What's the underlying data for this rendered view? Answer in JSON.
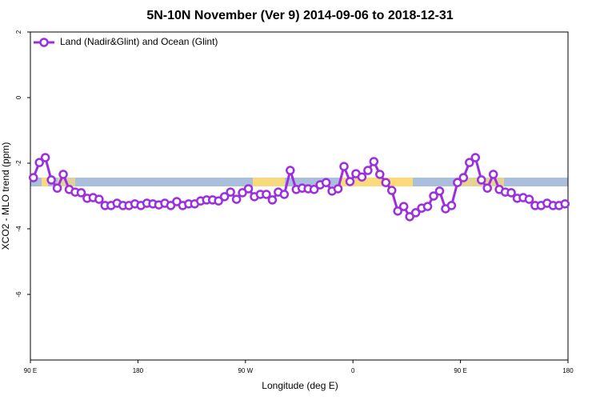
{
  "chart_data": {
    "type": "line",
    "title": "5N-10N November (Ver 9)   2014-09-06 to 2018-12-31",
    "x_label": "Longitude (deg E)",
    "y_label": "XCO2 - MLO trend (ppm)",
    "x": [
      92.5,
      97.5,
      102.5,
      107.5,
      112.5,
      117.5,
      122.5,
      127.5,
      132.5,
      137.5,
      142.5,
      147.5,
      152.5,
      157.5,
      162.5,
      167.5,
      172.5,
      177.5,
      182.5,
      187.5,
      192.5,
      197.5,
      202.5,
      207.5,
      212.5,
      217.5,
      222.5,
      227.5,
      232.5,
      237.5,
      242.5,
      247.5,
      252.5,
      257.5,
      262.5,
      267.5,
      272.5,
      277.5,
      282.5,
      287.5,
      292.5,
      297.5,
      302.5,
      307.5,
      312.5,
      317.5,
      322.5,
      327.5,
      332.5,
      337.5,
      342.5,
      347.5,
      352.5,
      357.5,
      362.5,
      367.5,
      372.5,
      377.5,
      382.5,
      387.5,
      392.5,
      397.5,
      402.5,
      407.5,
      412.5,
      417.5,
      422.5,
      427.5,
      432.5,
      437.5,
      442.5,
      447.5,
      452.5,
      457.5,
      462.5,
      467.5,
      472.5,
      477.5,
      482.5,
      487.5,
      492.5,
      497.5,
      502.5,
      507.5,
      512.5,
      517.5,
      522.5,
      527.5,
      532.5,
      537.5
    ],
    "series": [
      {
        "name": "Land (Nadir&Glint) and Ocean (Glint)",
        "color": "#9b2fe0",
        "values": [
          -2.44,
          -1.98,
          -1.83,
          -2.51,
          -2.76,
          -2.34,
          -2.8,
          -2.88,
          -2.9,
          -3.07,
          -3.05,
          -3.1,
          -3.29,
          -3.29,
          -3.22,
          -3.29,
          -3.29,
          -3.24,
          -3.29,
          -3.22,
          -3.24,
          -3.27,
          -3.22,
          -3.29,
          -3.17,
          -3.29,
          -3.24,
          -3.24,
          -3.15,
          -3.12,
          -3.12,
          -3.15,
          -3.02,
          -2.88,
          -3.1,
          -2.9,
          -2.78,
          -3.02,
          -2.95,
          -2.95,
          -3.12,
          -2.88,
          -2.95,
          -2.22,
          -2.8,
          -2.76,
          -2.78,
          -2.8,
          -2.66,
          -2.59,
          -2.85,
          -2.78,
          -2.1,
          -2.56,
          -2.32,
          -2.42,
          -2.22,
          -1.95,
          -2.34,
          -2.59,
          -2.83,
          -3.46,
          -3.32,
          -3.63,
          -3.51,
          -3.37,
          -3.32,
          -3.0,
          -2.85,
          -3.39,
          -3.29,
          -2.59,
          -2.44,
          -1.98,
          -1.83,
          -2.51,
          -2.76,
          -2.34,
          -2.8,
          -2.88,
          -2.9,
          -3.07,
          -3.05,
          -3.1,
          -3.29,
          -3.29,
          -3.22,
          -3.29,
          -3.29,
          -3.24
        ]
      }
    ],
    "xlim": [
      90,
      540
    ],
    "xticks": [
      {
        "value": 90,
        "label": "90 E"
      },
      180,
      {
        "value": 270,
        "label": "90 W"
      },
      {
        "value": 360,
        "label": "0"
      },
      {
        "value": 450,
        "label": "90 E"
      },
      {
        "value": 540,
        "label": "180"
      }
    ],
    "ylim": [
      -8,
      2
    ],
    "yticks": [
      2,
      0,
      -2,
      -4,
      -6
    ],
    "legend": "top-left"
  }
}
